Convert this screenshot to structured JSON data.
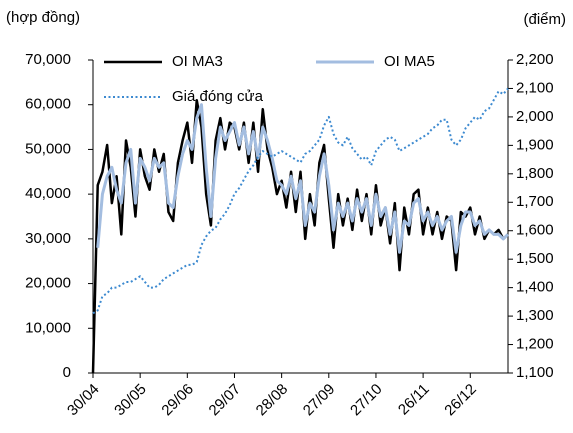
{
  "chart_data": {
    "type": "line",
    "y_axis_label": "(hợp đồng)",
    "y2_axis_label": "(điểm)",
    "legend": "top",
    "categories": [
      "30/04",
      null,
      null,
      null,
      null,
      null,
      null,
      null,
      null,
      null,
      "30/05",
      null,
      null,
      null,
      null,
      null,
      null,
      null,
      null,
      null,
      "29/06",
      null,
      null,
      null,
      null,
      null,
      null,
      null,
      null,
      null,
      "29/07",
      null,
      null,
      null,
      null,
      null,
      null,
      null,
      null,
      null,
      "28/08",
      null,
      null,
      null,
      null,
      null,
      null,
      null,
      null,
      null,
      "27/09",
      null,
      null,
      null,
      null,
      null,
      null,
      null,
      null,
      null,
      "27/10",
      null,
      null,
      null,
      null,
      null,
      null,
      null,
      null,
      null,
      "26/11",
      null,
      null,
      null,
      null,
      null,
      null,
      null,
      null,
      null,
      "26/12",
      null,
      null,
      null,
      null,
      null,
      null,
      null,
      null
    ],
    "ylim": [
      0,
      70000
    ],
    "yticks": [
      0,
      {
        "value": 10000,
        "label": "10,000"
      },
      {
        "value": 20000,
        "label": "20,000"
      },
      {
        "value": 30000,
        "label": "30,000"
      },
      {
        "value": 40000,
        "label": "40,000"
      },
      {
        "value": 50000,
        "label": "50,000"
      },
      {
        "value": 60000,
        "label": "60,000"
      },
      {
        "value": 70000,
        "label": "70,000"
      }
    ],
    "y2lim": [
      1100,
      2200
    ],
    "y2ticks": [
      {
        "value": 1100,
        "label": "1,100"
      },
      {
        "value": 1200,
        "label": "1,200"
      },
      {
        "value": 1300,
        "label": "1,300"
      },
      {
        "value": 1400,
        "label": "1,400"
      },
      {
        "value": 1500,
        "label": "1,500"
      },
      {
        "value": 1600,
        "label": "1,600"
      },
      {
        "value": 1700,
        "label": "1,700"
      },
      {
        "value": 1800,
        "label": "1,800"
      },
      {
        "value": 1900,
        "label": "1,900"
      },
      {
        "value": 2000,
        "label": "2,000"
      },
      {
        "value": 2100,
        "label": "2,100"
      },
      {
        "value": 2200,
        "label": "2,200"
      }
    ],
    "series": [
      {
        "name": "OI MA3",
        "color": "#000000",
        "width": 2.5,
        "style": "solid",
        "values": [
          0,
          42000,
          45000,
          51000,
          38000,
          44000,
          31000,
          52000,
          46000,
          35000,
          50000,
          44000,
          41000,
          50000,
          45000,
          49000,
          36000,
          34000,
          47000,
          52000,
          56000,
          47000,
          61000,
          55000,
          40000,
          33000,
          52000,
          57000,
          50000,
          56000,
          55000,
          50000,
          56000,
          47000,
          56000,
          45000,
          59000,
          50000,
          46000,
          40000,
          43000,
          37000,
          45000,
          36000,
          45000,
          30000,
          40000,
          33000,
          47000,
          51000,
          39000,
          28000,
          40000,
          33000,
          39000,
          32000,
          41000,
          34000,
          40000,
          31000,
          42000,
          33000,
          37000,
          29000,
          38000,
          23000,
          37000,
          31000,
          40000,
          41000,
          31000,
          37000,
          31000,
          36000,
          30000,
          35000,
          34000,
          23000,
          36000,
          35000,
          37000,
          31000,
          35000,
          30000,
          32000,
          31000,
          32000,
          30000,
          31000
        ]
      },
      {
        "name": "OI MA5",
        "color": "#a3bde0",
        "width": 3,
        "style": "solid",
        "values": [
          null,
          28000,
          40000,
          44000,
          46000,
          41000,
          38000,
          47000,
          50000,
          38000,
          48000,
          46000,
          43000,
          48000,
          46000,
          47000,
          38000,
          37000,
          44000,
          49000,
          52000,
          50000,
          57000,
          60000,
          46000,
          35000,
          48000,
          55000,
          52000,
          54000,
          56000,
          51000,
          55000,
          49000,
          54000,
          48000,
          55000,
          52000,
          48000,
          43000,
          42000,
          40000,
          44000,
          39000,
          43000,
          33000,
          38000,
          36000,
          44000,
          49000,
          42000,
          32000,
          38000,
          35000,
          38000,
          34000,
          39000,
          36000,
          39000,
          33000,
          40000,
          35000,
          37000,
          31000,
          36000,
          27000,
          34000,
          33000,
          38000,
          39000,
          34000,
          36000,
          33000,
          35000,
          32000,
          34000,
          35000,
          27000,
          33000,
          36000,
          36000,
          33000,
          34000,
          31000,
          32000,
          31000,
          31000,
          30000,
          31000
        ]
      },
      {
        "name": "Giá đóng cửa",
        "color": "#3d8ad0",
        "width": 2,
        "style": "dotted",
        "axis": "y2",
        "values": [
          1310,
          1320,
          1370,
          1380,
          1400,
          1400,
          1410,
          1420,
          1420,
          1430,
          1440,
          1420,
          1400,
          1400,
          1410,
          1430,
          1440,
          1450,
          1460,
          1470,
          1480,
          1480,
          1490,
          1550,
          1580,
          1600,
          1610,
          1640,
          1660,
          1690,
          1730,
          1750,
          1780,
          1810,
          1830,
          1860,
          1880,
          1870,
          1860,
          1870,
          1880,
          1870,
          1860,
          1850,
          1840,
          1870,
          1880,
          1900,
          1920,
          1970,
          2000,
          1940,
          1910,
          1900,
          1930,
          1890,
          1870,
          1850,
          1860,
          1830,
          1880,
          1900,
          1920,
          1930,
          1920,
          1880,
          1890,
          1900,
          1910,
          1920,
          1930,
          1940,
          1960,
          1970,
          1990,
          1990,
          1920,
          1900,
          1920,
          1960,
          1980,
          2000,
          1990,
          2020,
          2030,
          2060,
          2090,
          2080,
          2100
        ]
      }
    ]
  }
}
